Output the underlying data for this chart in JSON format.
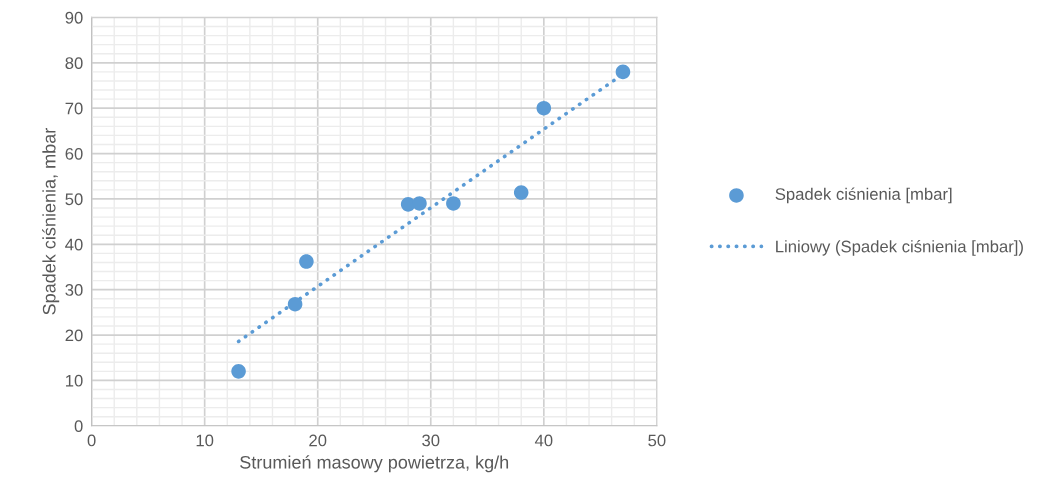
{
  "chart_data": {
    "type": "scatter",
    "xlabel": "Strumień masowy powietrza, kg/h",
    "ylabel": "Spadek ciśnienia, mbar",
    "series": [
      {
        "name": "Spadek ciśnienia [mbar]",
        "color": "#5b9bd5",
        "marker": "circle",
        "x": [
          13,
          18,
          19,
          28,
          29,
          32,
          38,
          40,
          47
        ],
        "values": [
          12,
          26.8,
          36.2,
          48.8,
          49,
          49,
          51.4,
          70,
          78
        ]
      },
      {
        "name": "Liniowy (Spadek ciśnienia [mbar])",
        "type": "line",
        "color": "#5b9bd5",
        "line_style": "dotted",
        "marker": "none",
        "x": [
          13,
          47
        ],
        "values": [
          18.6,
          77.5
        ]
      }
    ],
    "xlim": [
      0,
      50
    ],
    "xticks": [
      0,
      10,
      20,
      30,
      40,
      50
    ],
    "ylim": [
      0,
      90
    ],
    "yticks": [
      0,
      10,
      20,
      30,
      40,
      50,
      60,
      70,
      80,
      90
    ],
    "grid": true,
    "legend": "right"
  }
}
